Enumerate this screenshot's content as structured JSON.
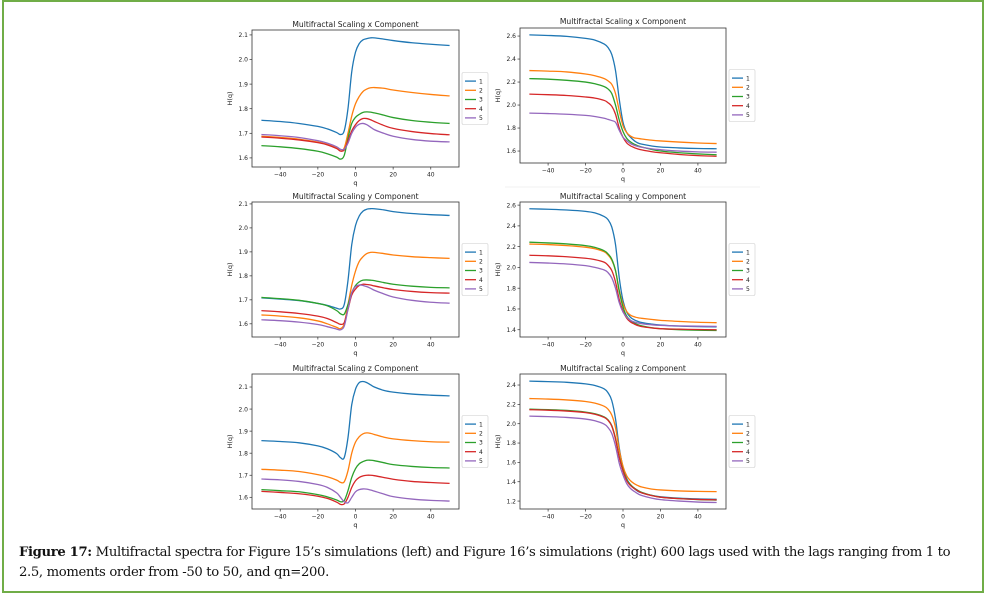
{
  "figure": {
    "caption_label": "Figure 17:",
    "caption_text": " Multifractal spectra for Figure 15’s simulations (left) and Figure 16’s simulations (right) 600 lags used with the lags ranging from 1 to 2.5, moments order from -50 to 50, and qn=200.",
    "border_color": "#70ad47"
  },
  "series_colors": [
    "#1f77b4",
    "#ff7f0e",
    "#2ca02c",
    "#d62728",
    "#9467bd"
  ],
  "chart_data": [
    {
      "id": "left-x",
      "type": "line",
      "title": "Multifractal Scaling x Component",
      "xlabel": "q",
      "ylabel": "H(q)",
      "xlim": [
        -55,
        55
      ],
      "ylim": [
        1.563,
        2.12
      ],
      "xticks": [
        -40,
        -20,
        0,
        20,
        40
      ],
      "yticks": [
        "1.6",
        "1.7",
        "1.8",
        "1.9",
        "2.0",
        "2.1"
      ],
      "legend": [
        "1",
        "2",
        "3",
        "4",
        "5"
      ],
      "legend_position": "outside-right",
      "grid": false,
      "x": [
        -50,
        -40,
        -30,
        -20,
        -15,
        -10,
        -8,
        -6,
        -4,
        -2,
        0,
        2,
        4,
        6,
        8,
        10,
        15,
        20,
        30,
        40,
        50
      ],
      "series": [
        {
          "name": "1",
          "values": [
            1.753,
            1.748,
            1.74,
            1.728,
            1.718,
            1.703,
            1.695,
            1.71,
            1.8,
            1.95,
            2.03,
            2.065,
            2.08,
            2.085,
            2.088,
            2.088,
            2.083,
            2.077,
            2.068,
            2.062,
            2.057
          ]
        },
        {
          "name": "2",
          "values": [
            1.688,
            1.683,
            1.676,
            1.664,
            1.655,
            1.64,
            1.628,
            1.64,
            1.7,
            1.77,
            1.82,
            1.85,
            1.87,
            1.88,
            1.885,
            1.886,
            1.883,
            1.876,
            1.866,
            1.858,
            1.852
          ]
        },
        {
          "name": "3",
          "values": [
            1.65,
            1.645,
            1.638,
            1.627,
            1.617,
            1.603,
            1.595,
            1.61,
            1.68,
            1.74,
            1.765,
            1.777,
            1.785,
            1.787,
            1.786,
            1.783,
            1.774,
            1.764,
            1.752,
            1.745,
            1.74
          ]
        },
        {
          "name": "4",
          "values": [
            1.685,
            1.68,
            1.673,
            1.662,
            1.653,
            1.638,
            1.628,
            1.632,
            1.67,
            1.71,
            1.735,
            1.752,
            1.76,
            1.76,
            1.755,
            1.748,
            1.732,
            1.72,
            1.707,
            1.699,
            1.694
          ]
        },
        {
          "name": "5",
          "values": [
            1.695,
            1.69,
            1.683,
            1.67,
            1.66,
            1.645,
            1.635,
            1.635,
            1.66,
            1.7,
            1.725,
            1.737,
            1.74,
            1.735,
            1.725,
            1.715,
            1.7,
            1.688,
            1.675,
            1.668,
            1.665
          ]
        }
      ]
    },
    {
      "id": "right-x",
      "type": "line",
      "title": "Multifractal Scaling x Component",
      "xlabel": "q",
      "ylabel": "H(q)",
      "xlim": [
        -55,
        55
      ],
      "ylim": [
        1.496,
        2.67
      ],
      "xticks": [
        -40,
        -20,
        0,
        20,
        40
      ],
      "yticks": [
        "1.6",
        "1.8",
        "2.0",
        "2.2",
        "2.4",
        "2.6"
      ],
      "legend": [
        "1",
        "2",
        "3",
        "4",
        "5"
      ],
      "legend_position": "outside-right",
      "grid": false,
      "x": [
        -50,
        -40,
        -30,
        -20,
        -15,
        -10,
        -8,
        -6,
        -4,
        -2,
        0,
        2,
        4,
        6,
        8,
        10,
        15,
        20,
        30,
        40,
        50
      ],
      "series": [
        {
          "name": "1",
          "values": [
            2.61,
            2.605,
            2.597,
            2.58,
            2.565,
            2.53,
            2.5,
            2.44,
            2.3,
            2.05,
            1.85,
            1.76,
            1.72,
            1.69,
            1.67,
            1.66,
            1.645,
            1.635,
            1.627,
            1.622,
            1.62
          ]
        },
        {
          "name": "2",
          "values": [
            2.3,
            2.295,
            2.288,
            2.27,
            2.255,
            2.23,
            2.21,
            2.18,
            2.1,
            1.95,
            1.82,
            1.76,
            1.73,
            1.715,
            1.71,
            1.705,
            1.695,
            1.688,
            1.678,
            1.67,
            1.665
          ]
        },
        {
          "name": "3",
          "values": [
            2.23,
            2.225,
            2.215,
            2.2,
            2.185,
            2.16,
            2.14,
            2.1,
            2.0,
            1.87,
            1.77,
            1.71,
            1.68,
            1.66,
            1.645,
            1.635,
            1.615,
            1.6,
            1.585,
            1.575,
            1.568
          ]
        },
        {
          "name": "4",
          "values": [
            2.095,
            2.09,
            2.083,
            2.07,
            2.06,
            2.04,
            2.02,
            1.99,
            1.92,
            1.8,
            1.72,
            1.67,
            1.645,
            1.63,
            1.618,
            1.61,
            1.595,
            1.585,
            1.57,
            1.56,
            1.555
          ]
        },
        {
          "name": "5",
          "values": [
            1.93,
            1.926,
            1.92,
            1.91,
            1.9,
            1.885,
            1.875,
            1.865,
            1.85,
            1.78,
            1.72,
            1.69,
            1.665,
            1.65,
            1.64,
            1.633,
            1.62,
            1.612,
            1.6,
            1.593,
            1.59
          ]
        }
      ]
    },
    {
      "id": "left-y",
      "type": "line",
      "title": "Multifractal Scaling y Component",
      "xlabel": "q",
      "ylabel": "H(q)",
      "xlim": [
        -55,
        55
      ],
      "ylim": [
        1.545,
        2.108
      ],
      "xticks": [
        -40,
        -20,
        0,
        20,
        40
      ],
      "yticks": [
        "1.6",
        "1.7",
        "1.8",
        "1.9",
        "2.0",
        "2.1"
      ],
      "legend": [
        "1",
        "2",
        "3",
        "4",
        "5"
      ],
      "legend_position": "outside-right",
      "grid": false,
      "x": [
        -50,
        -40,
        -30,
        -20,
        -15,
        -10,
        -8,
        -6,
        -4,
        -2,
        0,
        2,
        4,
        6,
        8,
        10,
        15,
        20,
        30,
        40,
        50
      ],
      "series": [
        {
          "name": "1",
          "values": [
            1.708,
            1.703,
            1.697,
            1.685,
            1.677,
            1.665,
            1.662,
            1.68,
            1.78,
            1.93,
            2.01,
            2.05,
            2.07,
            2.078,
            2.08,
            2.08,
            2.075,
            2.068,
            2.06,
            2.055,
            2.052
          ]
        },
        {
          "name": "2",
          "values": [
            1.637,
            1.632,
            1.625,
            1.612,
            1.6,
            1.585,
            1.58,
            1.6,
            1.68,
            1.76,
            1.82,
            1.86,
            1.88,
            1.893,
            1.898,
            1.898,
            1.893,
            1.887,
            1.88,
            1.876,
            1.873
          ]
        },
        {
          "name": "3",
          "values": [
            1.71,
            1.705,
            1.698,
            1.685,
            1.675,
            1.655,
            1.642,
            1.64,
            1.68,
            1.73,
            1.76,
            1.775,
            1.782,
            1.783,
            1.782,
            1.78,
            1.772,
            1.765,
            1.757,
            1.752,
            1.75
          ]
        },
        {
          "name": "4",
          "values": [
            1.655,
            1.65,
            1.643,
            1.632,
            1.622,
            1.605,
            1.598,
            1.605,
            1.66,
            1.72,
            1.745,
            1.76,
            1.765,
            1.764,
            1.762,
            1.758,
            1.75,
            1.743,
            1.735,
            1.73,
            1.728
          ]
        },
        {
          "name": "5",
          "values": [
            1.617,
            1.613,
            1.607,
            1.597,
            1.588,
            1.578,
            1.575,
            1.59,
            1.66,
            1.73,
            1.755,
            1.762,
            1.76,
            1.755,
            1.748,
            1.74,
            1.725,
            1.712,
            1.698,
            1.69,
            1.686
          ]
        }
      ]
    },
    {
      "id": "right-y",
      "type": "line",
      "title": "Multifractal Scaling y Component",
      "xlabel": "q",
      "ylabel": "H(q)",
      "xlim": [
        -55,
        55
      ],
      "ylim": [
        1.33,
        2.63
      ],
      "xticks": [
        -40,
        -20,
        0,
        20,
        40
      ],
      "yticks": [
        "1.4",
        "1.6",
        "1.8",
        "2.0",
        "2.2",
        "2.4",
        "2.6"
      ],
      "legend": [
        "1",
        "2",
        "3",
        "4",
        "5"
      ],
      "legend_position": "outside-right",
      "grid": false,
      "x": [
        -50,
        -40,
        -30,
        -20,
        -15,
        -10,
        -8,
        -6,
        -4,
        -2,
        0,
        2,
        4,
        6,
        8,
        10,
        15,
        20,
        30,
        40,
        50
      ],
      "series": [
        {
          "name": "1",
          "values": [
            2.565,
            2.56,
            2.553,
            2.54,
            2.525,
            2.49,
            2.46,
            2.39,
            2.22,
            1.9,
            1.68,
            1.57,
            1.52,
            1.495,
            1.48,
            1.47,
            1.455,
            1.445,
            1.435,
            1.43,
            1.428
          ]
        },
        {
          "name": "2",
          "values": [
            2.225,
            2.22,
            2.21,
            2.195,
            2.18,
            2.15,
            2.12,
            2.07,
            1.97,
            1.78,
            1.65,
            1.575,
            1.54,
            1.525,
            1.515,
            1.51,
            1.5,
            1.49,
            1.48,
            1.472,
            1.468
          ]
        },
        {
          "name": "3",
          "values": [
            2.243,
            2.236,
            2.226,
            2.21,
            2.193,
            2.16,
            2.13,
            2.08,
            1.97,
            1.77,
            1.62,
            1.53,
            1.49,
            1.465,
            1.448,
            1.437,
            1.42,
            1.41,
            1.4,
            1.395,
            1.393
          ]
        },
        {
          "name": "4",
          "values": [
            2.117,
            2.112,
            2.103,
            2.088,
            2.075,
            2.05,
            2.02,
            1.97,
            1.86,
            1.69,
            1.58,
            1.51,
            1.475,
            1.455,
            1.44,
            1.43,
            1.418,
            1.41,
            1.405,
            1.402,
            1.4
          ]
        },
        {
          "name": "5",
          "values": [
            2.048,
            2.042,
            2.033,
            2.017,
            2.0,
            1.975,
            1.95,
            1.9,
            1.8,
            1.66,
            1.57,
            1.52,
            1.49,
            1.475,
            1.465,
            1.458,
            1.448,
            1.442,
            1.437,
            1.434,
            1.432
          ]
        }
      ]
    },
    {
      "id": "left-z",
      "type": "line",
      "title": "Multifractal Scaling z Component",
      "xlabel": "q",
      "ylabel": "H(q)",
      "xlim": [
        -55,
        55
      ],
      "ylim": [
        1.547,
        2.159
      ],
      "xticks": [
        -40,
        -20,
        0,
        20,
        40
      ],
      "yticks": [
        "1.6",
        "1.7",
        "1.8",
        "1.9",
        "2.0",
        "2.1"
      ],
      "legend": [
        "1",
        "2",
        "3",
        "4",
        "5"
      ],
      "legend_position": "outside-right",
      "grid": false,
      "x": [
        -50,
        -40,
        -30,
        -20,
        -15,
        -10,
        -8,
        -6,
        -4,
        -2,
        0,
        2,
        4,
        6,
        8,
        10,
        15,
        20,
        30,
        40,
        50
      ],
      "series": [
        {
          "name": "1",
          "values": [
            1.857,
            1.853,
            1.847,
            1.833,
            1.82,
            1.798,
            1.78,
            1.78,
            1.87,
            2.02,
            2.09,
            2.12,
            2.125,
            2.12,
            2.11,
            2.1,
            2.085,
            2.077,
            2.068,
            2.063,
            2.06
          ]
        },
        {
          "name": "2",
          "values": [
            1.727,
            1.723,
            1.717,
            1.703,
            1.693,
            1.678,
            1.668,
            1.67,
            1.72,
            1.8,
            1.85,
            1.875,
            1.888,
            1.892,
            1.89,
            1.885,
            1.873,
            1.865,
            1.857,
            1.852,
            1.85
          ]
        },
        {
          "name": "3",
          "values": [
            1.635,
            1.63,
            1.625,
            1.612,
            1.602,
            1.588,
            1.58,
            1.585,
            1.63,
            1.69,
            1.73,
            1.752,
            1.762,
            1.768,
            1.768,
            1.766,
            1.757,
            1.748,
            1.74,
            1.735,
            1.733
          ]
        },
        {
          "name": "4",
          "values": [
            1.627,
            1.622,
            1.616,
            1.605,
            1.595,
            1.578,
            1.568,
            1.57,
            1.6,
            1.645,
            1.675,
            1.69,
            1.697,
            1.7,
            1.7,
            1.698,
            1.69,
            1.682,
            1.672,
            1.667,
            1.663
          ]
        },
        {
          "name": "5",
          "values": [
            1.683,
            1.679,
            1.672,
            1.658,
            1.645,
            1.62,
            1.6,
            1.58,
            1.575,
            1.6,
            1.625,
            1.635,
            1.638,
            1.637,
            1.633,
            1.628,
            1.615,
            1.603,
            1.592,
            1.586,
            1.583
          ]
        }
      ]
    },
    {
      "id": "right-z",
      "type": "line",
      "title": "Multifractal Scaling z Component",
      "xlabel": "q",
      "ylabel": "H(q)",
      "xlim": [
        -55,
        55
      ],
      "ylim": [
        1.118,
        2.514
      ],
      "xticks": [
        -40,
        -20,
        0,
        20,
        40
      ],
      "yticks": [
        "1.2",
        "1.4",
        "1.6",
        "1.8",
        "2.0",
        "2.2",
        "2.4"
      ],
      "legend": [
        "1",
        "2",
        "3",
        "4",
        "5"
      ],
      "legend_position": "outside-right",
      "grid": false,
      "x": [
        -50,
        -40,
        -30,
        -20,
        -15,
        -10,
        -8,
        -6,
        -4,
        -2,
        0,
        2,
        4,
        6,
        8,
        10,
        15,
        20,
        30,
        40,
        50
      ],
      "series": [
        {
          "name": "1",
          "values": [
            2.44,
            2.435,
            2.428,
            2.412,
            2.395,
            2.36,
            2.32,
            2.24,
            2.05,
            1.75,
            1.55,
            1.43,
            1.37,
            1.33,
            1.3,
            1.285,
            1.26,
            1.245,
            1.23,
            1.222,
            1.218
          ]
        },
        {
          "name": "2",
          "values": [
            2.26,
            2.255,
            2.246,
            2.23,
            2.213,
            2.18,
            2.15,
            2.09,
            1.96,
            1.73,
            1.56,
            1.46,
            1.41,
            1.38,
            1.36,
            1.345,
            1.325,
            1.315,
            1.305,
            1.3,
            1.298
          ]
        },
        {
          "name": "3",
          "values": [
            2.15,
            2.145,
            2.137,
            2.12,
            2.103,
            2.07,
            2.04,
            1.98,
            1.85,
            1.66,
            1.52,
            1.42,
            1.37,
            1.335,
            1.31,
            1.29,
            1.26,
            1.24,
            1.225,
            1.215,
            1.21
          ]
        },
        {
          "name": "4",
          "values": [
            2.145,
            2.14,
            2.131,
            2.115,
            2.098,
            2.065,
            2.035,
            1.975,
            1.84,
            1.65,
            1.51,
            1.41,
            1.36,
            1.33,
            1.305,
            1.285,
            1.258,
            1.24,
            1.225,
            1.217,
            1.213
          ]
        },
        {
          "name": "5",
          "values": [
            2.078,
            2.073,
            2.065,
            2.048,
            2.03,
            1.995,
            1.96,
            1.9,
            1.77,
            1.59,
            1.47,
            1.38,
            1.33,
            1.3,
            1.275,
            1.258,
            1.232,
            1.215,
            1.2,
            1.19,
            1.185
          ]
        }
      ]
    }
  ]
}
